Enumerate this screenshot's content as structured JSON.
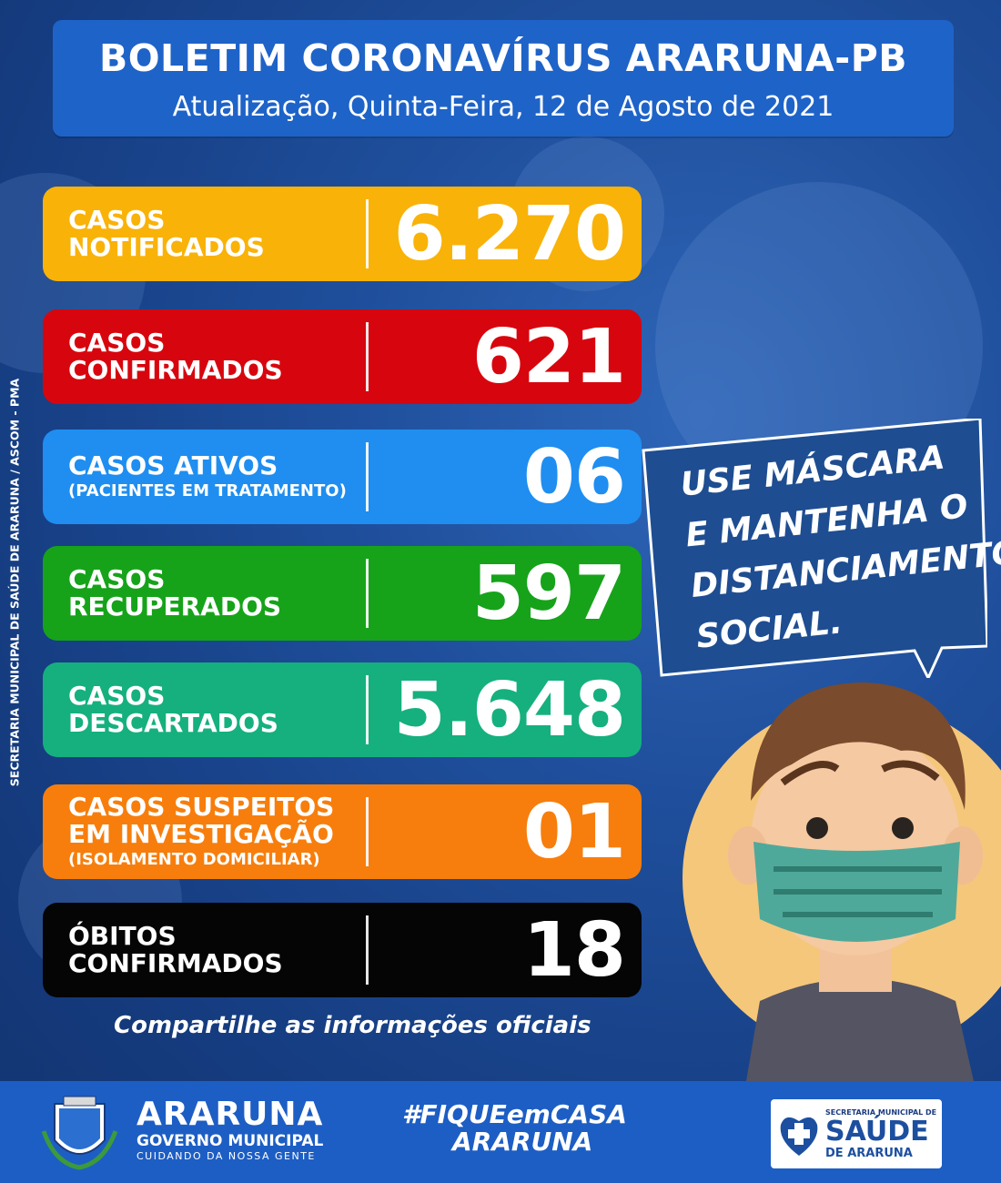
{
  "header": {
    "title": "BOLETIM CORONAVÍRUS ARARUNA-PB",
    "subtitle": "Atualização, Quinta-Feira, 12 de Agosto de 2021"
  },
  "side_text": "SECRETARIA MUNICIPAL DE SAÚDE DE ARARUNA / ASCOM - PMA",
  "cards": [
    {
      "line1": "CASOS",
      "line2": "NOTIFICADOS",
      "small": "",
      "value": "6.270",
      "color": "#f9b208"
    },
    {
      "line1": "CASOS",
      "line2": "CONFIRMADOS",
      "small": "",
      "value": "621",
      "color": "#d7060e"
    },
    {
      "line1": "CASOS ATIVOS",
      "line2": "",
      "small": "(PACIENTES EM TRATAMENTO)",
      "value": "06",
      "color": "#1f8ef0"
    },
    {
      "line1": "CASOS",
      "line2": "RECUPERADOS",
      "small": "",
      "value": "597",
      "color": "#16a31a"
    },
    {
      "line1": "CASOS",
      "line2": "DESCARTADOS",
      "small": "",
      "value": "5.648",
      "color": "#15b07e"
    },
    {
      "line1": "CASOS SUSPEITOS",
      "line2": "EM INVESTIGAÇÃO",
      "small": "(ISOLAMENTO DOMICILIAR)",
      "value": "01",
      "color": "#f77e0c"
    },
    {
      "line1": "ÓBITOS",
      "line2": "CONFIRMADOS",
      "small": "",
      "value": "18",
      "color": "#050505"
    }
  ],
  "bubble": {
    "line1": "USE MÁSCARA",
    "line2": "E MANTENHA O",
    "line3": "DISTANCIAMENTO",
    "line4": "SOCIAL."
  },
  "share": "Compartilhe as informações oficiais",
  "footer": {
    "brand_name": "ARARUNA",
    "brand_sub": "GOVERNO MUNICIPAL",
    "brand_tag": "CUIDANDO DA NOSSA GENTE",
    "hashtag_line1": "#FIQUEemCASA",
    "hashtag_line2": "ARARUNA",
    "secretaria_line1": "SECRETARIA MUNICIPAL DE",
    "secretaria_line2": "SAÚDE",
    "secretaria_line3": "DE ARARUNA"
  }
}
